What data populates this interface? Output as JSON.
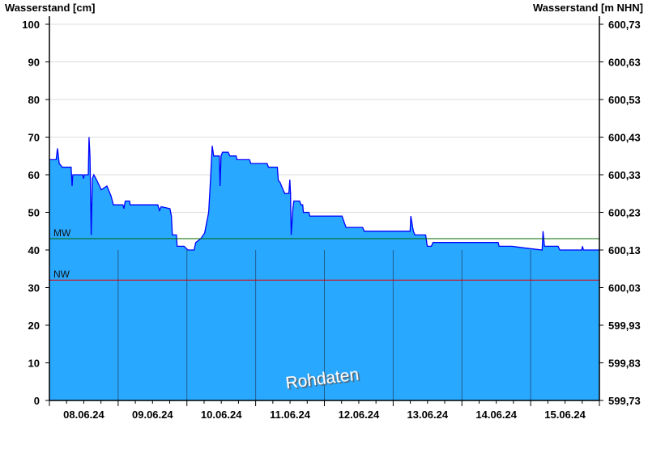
{
  "chart_data": {
    "type": "area",
    "ylabel_left": "Wasserstand [cm]",
    "ylabel_right": "Wasserstand [m NHN]",
    "ylim": [
      0,
      100
    ],
    "yticks_left": [
      "0",
      "10",
      "20",
      "30",
      "40",
      "50",
      "60",
      "70",
      "80",
      "90",
      "100"
    ],
    "yticks_right": [
      "599,73",
      "599,83",
      "599,93",
      "600,03",
      "600,13",
      "600,23",
      "600,33",
      "600,43",
      "600,53",
      "600,63",
      "600,73"
    ],
    "xlim": [
      "2024-06-08 00:00",
      "2024-06-16 00:00"
    ],
    "xticks": [
      "08.06.24",
      "09.06.24",
      "10.06.24",
      "11.06.24",
      "12.06.24",
      "13.06.24",
      "14.06.24",
      "15.06.24"
    ],
    "grid": true,
    "reference_lines": [
      {
        "label": "MW",
        "value": 43,
        "color": "#006400"
      },
      {
        "label": "NW",
        "value": 32,
        "color": "#e00000"
      }
    ],
    "watermark": "Rohdaten",
    "colors": {
      "fill": "#29a8ff",
      "line": "#0000ff",
      "grid": "#dddddd",
      "day_line": "#1f5f8f"
    },
    "series": [
      {
        "points": [
          [
            "2024-06-08 00:00",
            64
          ],
          [
            "2024-06-08 02:20",
            64
          ],
          [
            "2024-06-08 02:50",
            67
          ],
          [
            "2024-06-08 03:25",
            63
          ],
          [
            "2024-06-08 04:30",
            62
          ],
          [
            "2024-06-08 07:35",
            62
          ],
          [
            "2024-06-08 07:55",
            57
          ],
          [
            "2024-06-08 08:10",
            60
          ],
          [
            "2024-06-08 11:35",
            60
          ],
          [
            "2024-06-08 11:55",
            59
          ],
          [
            "2024-06-08 12:10",
            60
          ],
          [
            "2024-06-08 13:35",
            60
          ],
          [
            "2024-06-08 13:50",
            70
          ],
          [
            "2024-06-08 14:10",
            65
          ],
          [
            "2024-06-08 14:35",
            44
          ],
          [
            "2024-06-08 15:00",
            59
          ],
          [
            "2024-06-08 15:30",
            60
          ],
          [
            "2024-06-08 16:25",
            58.7
          ],
          [
            "2024-06-08 18:05",
            56
          ],
          [
            "2024-06-08 20:05",
            57
          ],
          [
            "2024-06-08 21:30",
            54.4
          ],
          [
            "2024-06-08 22:20",
            52
          ],
          [
            "2024-06-09 01:40",
            52
          ],
          [
            "2024-06-09 02:00",
            51
          ],
          [
            "2024-06-09 02:30",
            53
          ],
          [
            "2024-06-09 04:00",
            53
          ],
          [
            "2024-06-09 04:10",
            52
          ],
          [
            "2024-06-09 13:50",
            52
          ],
          [
            "2024-06-09 14:25",
            50.5
          ],
          [
            "2024-06-09 15:00",
            51.5
          ],
          [
            "2024-06-09 18:05",
            51
          ],
          [
            "2024-06-09 18:35",
            49
          ],
          [
            "2024-06-09 18:55",
            44
          ],
          [
            "2024-06-09 20:20",
            44
          ],
          [
            "2024-06-09 20:35",
            41
          ],
          [
            "2024-06-09 23:00",
            41
          ],
          [
            "2024-06-10 00:20",
            40
          ],
          [
            "2024-06-10 02:30",
            40
          ],
          [
            "2024-06-10 03:05",
            42
          ],
          [
            "2024-06-10 04:50",
            43
          ],
          [
            "2024-06-10 06:10",
            44.5
          ],
          [
            "2024-06-10 07:35",
            50
          ],
          [
            "2024-06-10 08:10",
            57.6
          ],
          [
            "2024-06-10 08:50",
            67.7
          ],
          [
            "2024-06-10 09:20",
            65
          ],
          [
            "2024-06-10 11:20",
            65
          ],
          [
            "2024-06-10 11:35",
            57
          ],
          [
            "2024-06-10 11:55",
            65
          ],
          [
            "2024-06-10 12:25",
            66
          ],
          [
            "2024-06-10 14:25",
            66
          ],
          [
            "2024-06-10 15:00",
            65
          ],
          [
            "2024-06-10 17:10",
            65
          ],
          [
            "2024-06-10 17:30",
            64
          ],
          [
            "2024-06-10 21:50",
            64
          ],
          [
            "2024-06-10 22:20",
            63
          ],
          [
            "2024-06-10 23:10",
            63
          ],
          [
            "2024-06-11 04:00",
            63
          ],
          [
            "2024-06-11 04:30",
            62
          ],
          [
            "2024-06-11 07:35",
            62
          ],
          [
            "2024-06-11 07:55",
            58.5
          ],
          [
            "2024-06-11 08:30",
            58
          ],
          [
            "2024-06-11 09:35",
            56
          ],
          [
            "2024-06-11 10:10",
            55
          ],
          [
            "2024-06-11 11:35",
            55
          ],
          [
            "2024-06-11 11:55",
            58.7
          ],
          [
            "2024-06-11 12:10",
            55
          ],
          [
            "2024-06-11 12:25",
            44
          ],
          [
            "2024-06-11 13:00",
            51
          ],
          [
            "2024-06-11 13:20",
            53
          ],
          [
            "2024-06-11 15:20",
            53
          ],
          [
            "2024-06-11 15:50",
            52
          ],
          [
            "2024-06-11 16:25",
            52
          ],
          [
            "2024-06-11 16:40",
            50
          ],
          [
            "2024-06-11 18:35",
            50
          ],
          [
            "2024-06-11 18:55",
            49
          ],
          [
            "2024-06-12 06:10",
            49
          ],
          [
            "2024-06-12 07:05",
            47
          ],
          [
            "2024-06-12 07:35",
            46
          ],
          [
            "2024-06-12 13:20",
            46
          ],
          [
            "2024-06-12 13:55",
            45
          ],
          [
            "2024-06-13 05:55",
            45
          ],
          [
            "2024-06-13 06:10",
            49
          ],
          [
            "2024-06-13 06:50",
            46
          ],
          [
            "2024-06-13 07:05",
            45
          ],
          [
            "2024-06-13 07:35",
            44
          ],
          [
            "2024-06-13 11:20",
            44
          ],
          [
            "2024-06-13 11:55",
            41
          ],
          [
            "2024-06-13 13:20",
            41
          ],
          [
            "2024-06-13 13:55",
            42
          ],
          [
            "2024-06-14 12:40",
            42
          ],
          [
            "2024-06-14 13:00",
            41
          ],
          [
            "2024-06-14 17:30",
            41
          ],
          [
            "2024-06-14 22:20",
            40.5
          ],
          [
            "2024-06-15 04:00",
            40
          ],
          [
            "2024-06-15 04:20",
            45
          ],
          [
            "2024-06-15 04:50",
            41
          ],
          [
            "2024-06-15 09:35",
            41
          ],
          [
            "2024-06-15 10:10",
            40
          ],
          [
            "2024-06-15 17:50",
            40
          ],
          [
            "2024-06-15 18:05",
            41
          ],
          [
            "2024-06-15 18:25",
            40
          ],
          [
            "2024-06-16 00:00",
            40
          ]
        ]
      }
    ]
  }
}
